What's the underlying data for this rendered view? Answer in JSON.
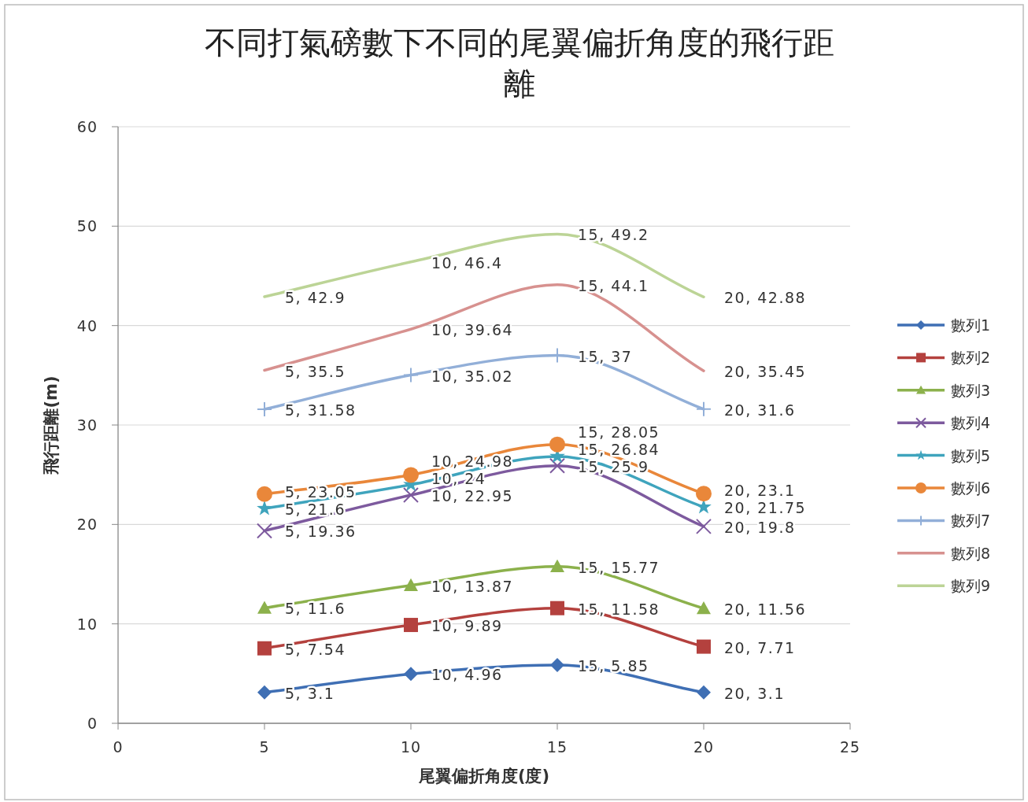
{
  "chart_data": {
    "type": "line",
    "title": "不同打氣磅數下不同的尾翼偏折角度的飛行距離",
    "xlabel": "尾翼偏折角度(度)",
    "ylabel": "飛行距離(m)",
    "x": [
      5,
      10,
      15,
      20
    ],
    "xlim": [
      0,
      25
    ],
    "xticks": [
      0,
      5,
      10,
      15,
      20,
      25
    ],
    "ylim": [
      0,
      60
    ],
    "yticks": [
      0,
      10,
      20,
      30,
      40,
      50,
      60
    ],
    "grid": "y",
    "legend": "right",
    "series": [
      {
        "name": "數列1",
        "color": "#3f6fb4",
        "marker": "diamond",
        "values": [
          3.1,
          4.96,
          5.85,
          3.1
        ],
        "value_labels": [
          "5, 3.1",
          "10, 4.96",
          "15, 5.85",
          "20, 3.1"
        ]
      },
      {
        "name": "數列2",
        "color": "#b4413e",
        "marker": "square",
        "values": [
          7.54,
          9.89,
          11.58,
          7.71
        ],
        "value_labels": [
          "5, 7.54",
          "10, 9.89",
          "15, 11.58",
          "20, 7.71"
        ]
      },
      {
        "name": "數列3",
        "color": "#8cb14c",
        "marker": "triangle",
        "values": [
          11.6,
          13.87,
          15.77,
          11.56
        ],
        "value_labels": [
          "5, 11.6",
          "10, 13.87",
          "15, 15.77",
          "20, 11.56"
        ]
      },
      {
        "name": "數列4",
        "color": "#7d5a9e",
        "marker": "cross",
        "values": [
          19.36,
          22.95,
          25.9,
          19.8
        ],
        "value_labels": [
          "5, 19.36",
          "10, 22.95",
          "15, 25.9",
          "20, 19.8"
        ]
      },
      {
        "name": "數列5",
        "color": "#3fa4bd",
        "marker": "star",
        "values": [
          21.6,
          24,
          26.84,
          21.75
        ],
        "value_labels": [
          "5, 21.6",
          "10, 24",
          "15, 26.84",
          "20, 21.75"
        ]
      },
      {
        "name": "數列6",
        "color": "#e9873a",
        "marker": "circle",
        "values": [
          23.05,
          24.98,
          28.05,
          23.1
        ],
        "value_labels": [
          "5, 23.05",
          "10, 24.98",
          "15, 28.05",
          "20, 23.1"
        ]
      },
      {
        "name": "數列7",
        "color": "#92afd8",
        "marker": "plus",
        "values": [
          31.58,
          35.02,
          37,
          31.6
        ],
        "value_labels": [
          "5, 31.58",
          "10, 35.02",
          "15, 37",
          "20, 31.6"
        ]
      },
      {
        "name": "數列8",
        "color": "#d7918f",
        "marker": "none",
        "values": [
          35.5,
          39.64,
          44.1,
          35.45
        ],
        "value_labels": [
          "5, 35.5",
          "10, 39.64",
          "15, 44.1",
          "20, 35.45"
        ]
      },
      {
        "name": "數列9",
        "color": "#bcd496",
        "marker": "none",
        "values": [
          42.9,
          46.4,
          49.2,
          42.88
        ],
        "value_labels": [
          "5, 42.9",
          "10, 46.4",
          "15, 49.2",
          "20, 42.88"
        ]
      }
    ]
  }
}
